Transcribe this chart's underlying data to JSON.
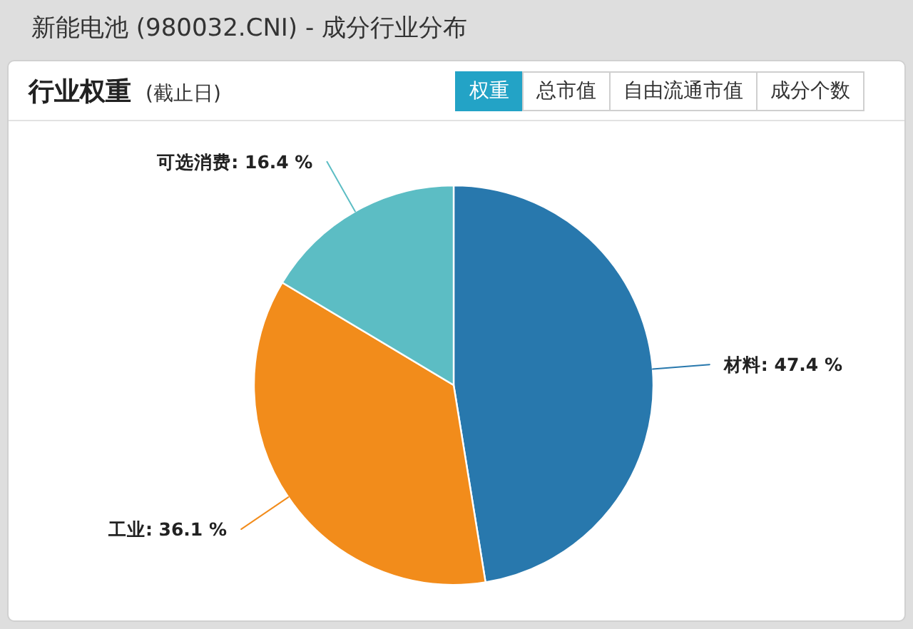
{
  "chart_data": {
    "type": "pie",
    "title": "新能电池 (980032.CNI) - 成分行业分布",
    "subtitle": "行业权重",
    "annotations": [
      "(截止日)",
      "权重",
      "总市值",
      "自由流通市值",
      "成分个数"
    ],
    "categories": [
      "材料",
      "工业",
      "可选消费"
    ],
    "values": [
      47.4,
      36.1,
      16.4
    ],
    "colors": [
      "#2878ad",
      "#f28c1b",
      "#5cbdc4"
    ],
    "value_labels": [
      "47.4 %",
      "36.1 %",
      "16.4 %"
    ]
  }
}
